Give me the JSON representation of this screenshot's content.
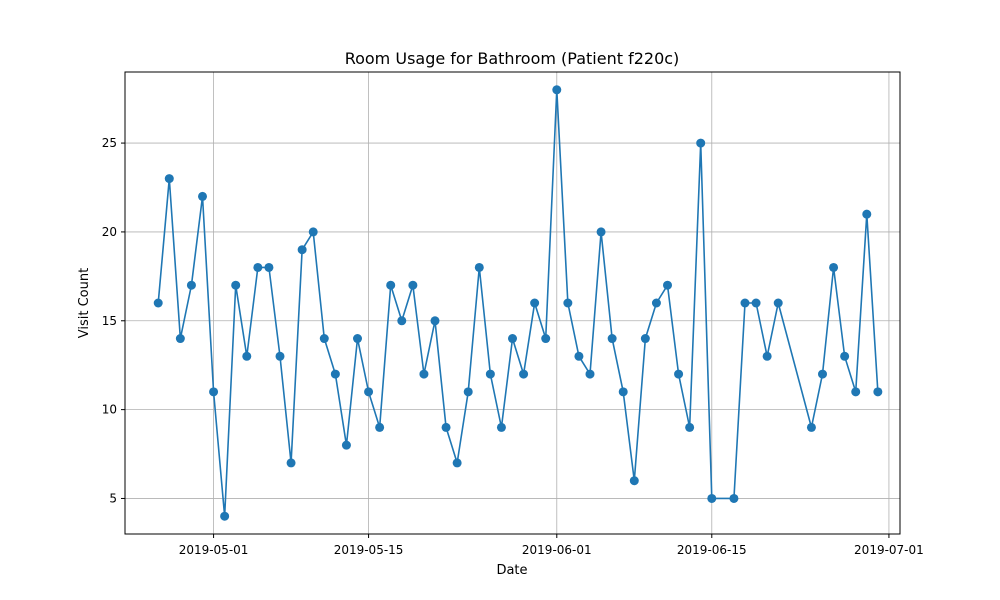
{
  "chart_data": {
    "type": "line",
    "title": "Room Usage for Bathroom (Patient f220c)",
    "xlabel": "Date",
    "ylabel": "Visit Count",
    "x_axis": "date",
    "xlim": [
      "2019-04-23",
      "2019-07-02"
    ],
    "ylim": [
      3,
      29
    ],
    "x_ticks": [
      "2019-05-01",
      "2019-05-15",
      "2019-06-01",
      "2019-06-15",
      "2019-07-01"
    ],
    "y_ticks": [
      5,
      10,
      15,
      20,
      25
    ],
    "grid": true,
    "legend": "none",
    "series": [
      {
        "color": "#1f77b4",
        "marker": "circle",
        "points": [
          [
            "2019-04-26",
            16
          ],
          [
            "2019-04-27",
            23
          ],
          [
            "2019-04-28",
            14
          ],
          [
            "2019-04-29",
            17
          ],
          [
            "2019-04-30",
            22
          ],
          [
            "2019-05-01",
            11
          ],
          [
            "2019-05-02",
            4
          ],
          [
            "2019-05-03",
            17
          ],
          [
            "2019-05-04",
            13
          ],
          [
            "2019-05-05",
            18
          ],
          [
            "2019-05-06",
            18
          ],
          [
            "2019-05-07",
            13
          ],
          [
            "2019-05-08",
            7
          ],
          [
            "2019-05-09",
            19
          ],
          [
            "2019-05-10",
            20
          ],
          [
            "2019-05-11",
            14
          ],
          [
            "2019-05-12",
            12
          ],
          [
            "2019-05-13",
            8
          ],
          [
            "2019-05-14",
            14
          ],
          [
            "2019-05-15",
            11
          ],
          [
            "2019-05-16",
            9
          ],
          [
            "2019-05-17",
            17
          ],
          [
            "2019-05-18",
            15
          ],
          [
            "2019-05-19",
            17
          ],
          [
            "2019-05-20",
            12
          ],
          [
            "2019-05-21",
            15
          ],
          [
            "2019-05-22",
            9
          ],
          [
            "2019-05-23",
            7
          ],
          [
            "2019-05-24",
            11
          ],
          [
            "2019-05-25",
            18
          ],
          [
            "2019-05-26",
            12
          ],
          [
            "2019-05-27",
            9
          ],
          [
            "2019-05-28",
            14
          ],
          [
            "2019-05-29",
            12
          ],
          [
            "2019-05-30",
            16
          ],
          [
            "2019-05-31",
            14
          ],
          [
            "2019-06-01",
            28
          ],
          [
            "2019-06-02",
            16
          ],
          [
            "2019-06-03",
            13
          ],
          [
            "2019-06-04",
            12
          ],
          [
            "2019-06-05",
            20
          ],
          [
            "2019-06-06",
            14
          ],
          [
            "2019-06-07",
            11
          ],
          [
            "2019-06-08",
            6
          ],
          [
            "2019-06-09",
            14
          ],
          [
            "2019-06-10",
            16
          ],
          [
            "2019-06-11",
            17
          ],
          [
            "2019-06-12",
            12
          ],
          [
            "2019-06-13",
            9
          ],
          [
            "2019-06-14",
            25
          ],
          [
            "2019-06-15",
            5
          ],
          [
            "2019-06-17",
            5
          ],
          [
            "2019-06-18",
            16
          ],
          [
            "2019-06-19",
            16
          ],
          [
            "2019-06-20",
            13
          ],
          [
            "2019-06-21",
            16
          ],
          [
            "2019-06-24",
            9
          ],
          [
            "2019-06-25",
            12
          ],
          [
            "2019-06-26",
            18
          ],
          [
            "2019-06-27",
            13
          ],
          [
            "2019-06-28",
            11
          ],
          [
            "2019-06-29",
            21
          ],
          [
            "2019-06-30",
            11
          ]
        ]
      }
    ]
  }
}
